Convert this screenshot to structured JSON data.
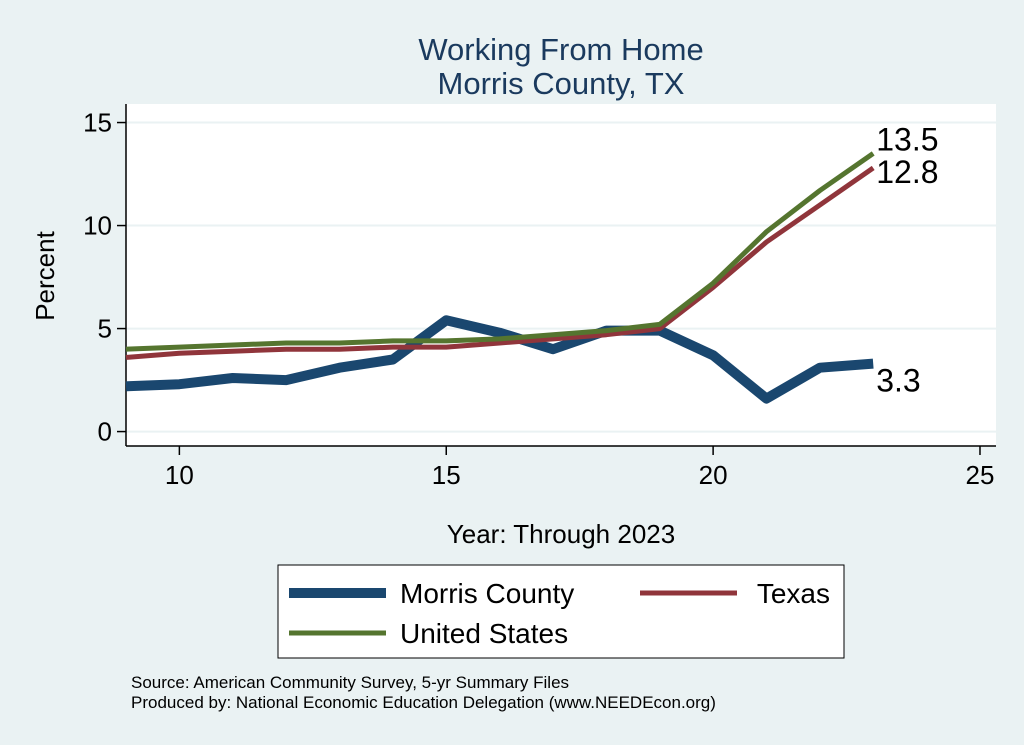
{
  "chart_data": {
    "type": "line",
    "title": "Working From Home",
    "subtitle": "Morris County, TX",
    "xlabel": "Year: Through 2023",
    "ylabel": "Percent",
    "xlim": [
      9,
      25.3
    ],
    "ylim": [
      -0.7,
      15.9
    ],
    "x_ticks": [
      10,
      15,
      20,
      25
    ],
    "y_ticks": [
      0,
      5,
      10,
      15
    ],
    "grid": true,
    "legend_position": "bottom",
    "x": [
      9,
      10,
      11,
      12,
      13,
      14,
      15,
      16,
      17,
      18,
      19,
      20,
      21,
      22,
      23
    ],
    "series": [
      {
        "name": "Morris County",
        "color": "#1a476f",
        "values": [
          2.2,
          2.3,
          2.6,
          2.5,
          3.1,
          3.5,
          5.4,
          4.8,
          4.0,
          4.9,
          4.9,
          3.7,
          1.6,
          3.1,
          3.3
        ],
        "end_label": "3.3"
      },
      {
        "name": "Texas",
        "color": "#90353b",
        "values": [
          3.6,
          3.8,
          3.9,
          4.0,
          4.0,
          4.1,
          4.1,
          4.3,
          4.5,
          4.7,
          5.0,
          7.0,
          9.2,
          11.0,
          12.8
        ],
        "end_label": "12.8"
      },
      {
        "name": "United States",
        "color": "#55752f",
        "values": [
          4.0,
          4.1,
          4.2,
          4.3,
          4.3,
          4.4,
          4.4,
          4.5,
          4.7,
          4.9,
          5.2,
          7.2,
          9.7,
          11.7,
          13.5
        ],
        "end_label": "13.5"
      }
    ],
    "footer": [
      "Source: American Community Survey, 5-yr Summary Files",
      "Produced by: National Economic Education Delegation (www.NEEDEcon.org)"
    ]
  }
}
